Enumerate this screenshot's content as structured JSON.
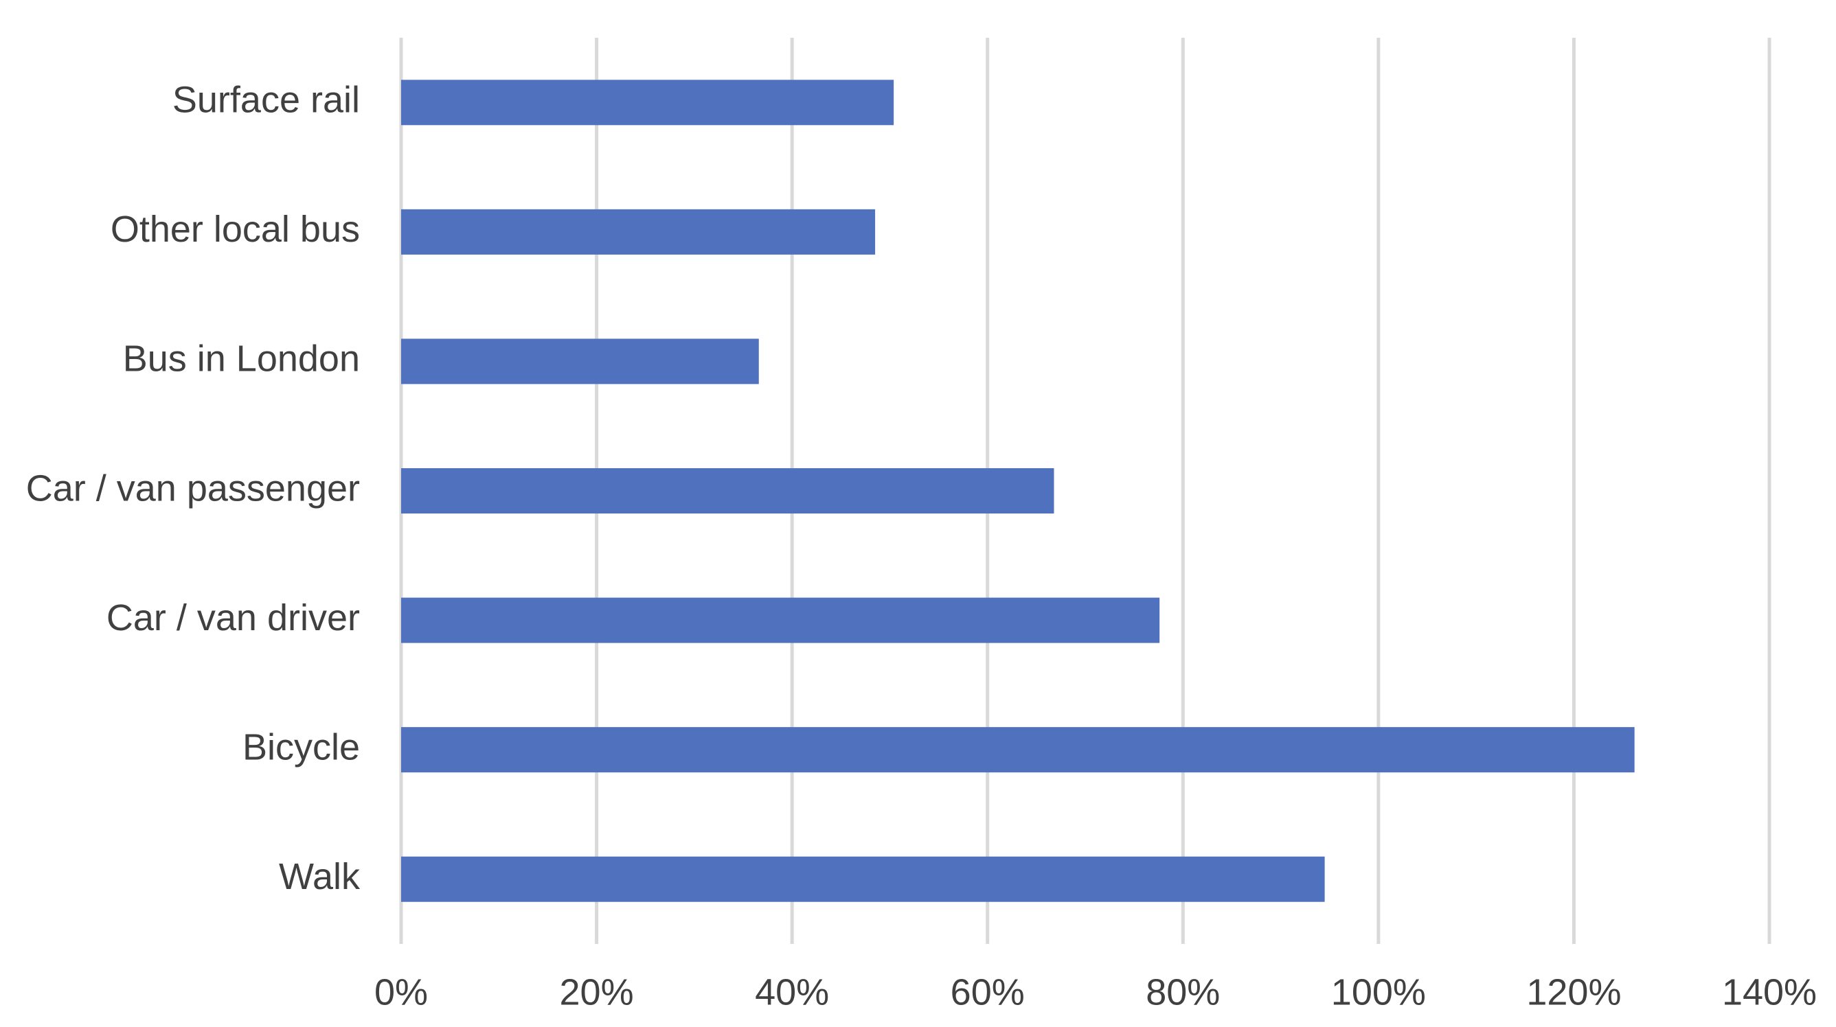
{
  "chart_data": {
    "type": "bar",
    "orientation": "horizontal",
    "categories": [
      "Surface rail",
      "Other local bus",
      "Bus in London",
      "Car / van passenger",
      "Car / van driver",
      "Bicycle",
      "Walk"
    ],
    "values": [
      50.4,
      48.5,
      36.6,
      66.8,
      77.6,
      126.2,
      94.5
    ],
    "color": "#4f71be",
    "xlim": [
      0,
      140
    ],
    "xticks": [
      {
        "value": 0,
        "label": "0%"
      },
      {
        "value": 20,
        "label": "20%"
      },
      {
        "value": 40,
        "label": "40%"
      },
      {
        "value": 60,
        "label": "60%"
      },
      {
        "value": 80,
        "label": "80%"
      },
      {
        "value": 100,
        "label": "100%"
      },
      {
        "value": 120,
        "label": "120%"
      },
      {
        "value": 140,
        "label": "140%"
      }
    ],
    "grid": true
  }
}
